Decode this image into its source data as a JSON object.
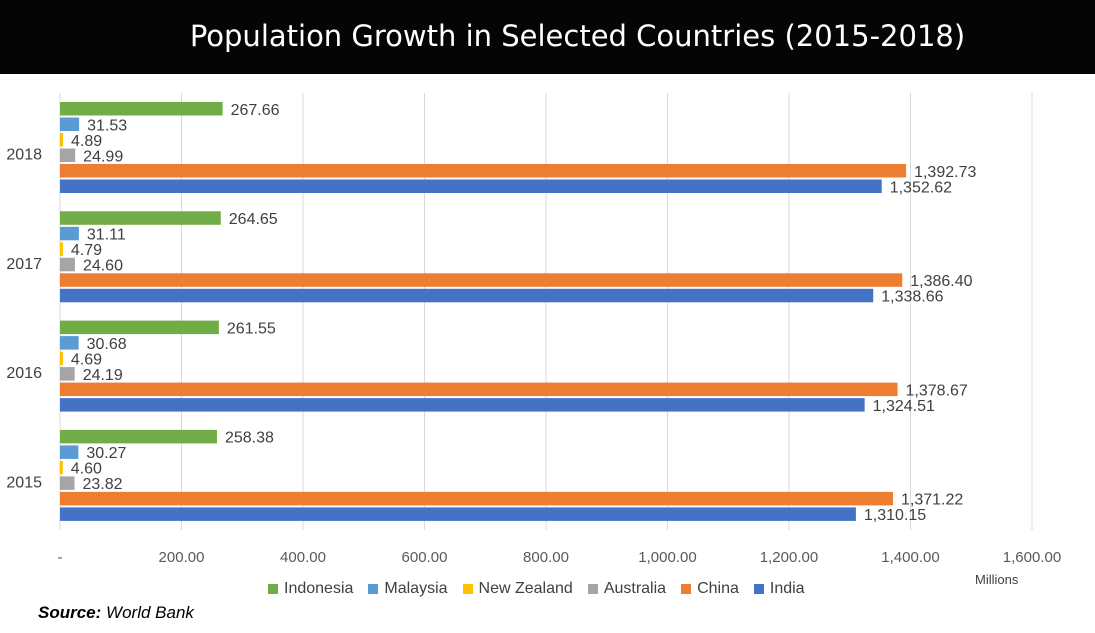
{
  "chart_data": {
    "type": "bar",
    "orientation": "horizontal",
    "title": "Population Growth in Selected Countries (2015-2018)",
    "categories": [
      "2018",
      "2017",
      "2016",
      "2015"
    ],
    "series": [
      {
        "name": "Indonesia",
        "color": "#70ad47",
        "values": [
          267.66,
          264.65,
          261.55,
          258.38
        ],
        "labels": [
          "267.66",
          "264.65",
          "261.55",
          "258.38"
        ]
      },
      {
        "name": "Malaysia",
        "color": "#5b9bd5",
        "values": [
          31.53,
          31.11,
          30.68,
          30.27
        ],
        "labels": [
          "31.53",
          "31.11",
          "30.68",
          "30.27"
        ]
      },
      {
        "name": "New Zealand",
        "color": "#ffc000",
        "values": [
          4.89,
          4.79,
          4.69,
          4.6
        ],
        "labels": [
          "4.89",
          "4.79",
          "4.69",
          "4.60"
        ]
      },
      {
        "name": "Australia",
        "color": "#a5a5a5",
        "values": [
          24.99,
          24.6,
          24.19,
          23.82
        ],
        "labels": [
          "24.99",
          "24.60",
          "24.19",
          "23.82"
        ]
      },
      {
        "name": "China",
        "color": "#ed7d31",
        "values": [
          1392.73,
          1386.4,
          1378.67,
          1371.22
        ],
        "labels": [
          "1,392.73",
          "1,386.40",
          "1,378.67",
          "1,371.22"
        ]
      },
      {
        "name": "India",
        "color": "#4472c4",
        "values": [
          1352.62,
          1338.66,
          1324.51,
          1310.15
        ],
        "labels": [
          "1,352.62",
          "1,338.66",
          "1,324.51",
          "1,310.15"
        ]
      }
    ],
    "x_ticks": [
      "-",
      "200.00",
      "400.00",
      "600.00",
      "800.00",
      "1,000.00",
      "1,200.00",
      "1,400.00",
      "1,600.00"
    ],
    "x_tick_values": [
      0,
      200,
      400,
      600,
      800,
      1000,
      1200,
      1400,
      1600
    ],
    "xlim": [
      0,
      1600
    ],
    "xlabel": "Millions",
    "ylabel": "",
    "grid": true,
    "legend_position": "bottom"
  },
  "source": {
    "label": "Source:",
    "text": "World Bank"
  }
}
